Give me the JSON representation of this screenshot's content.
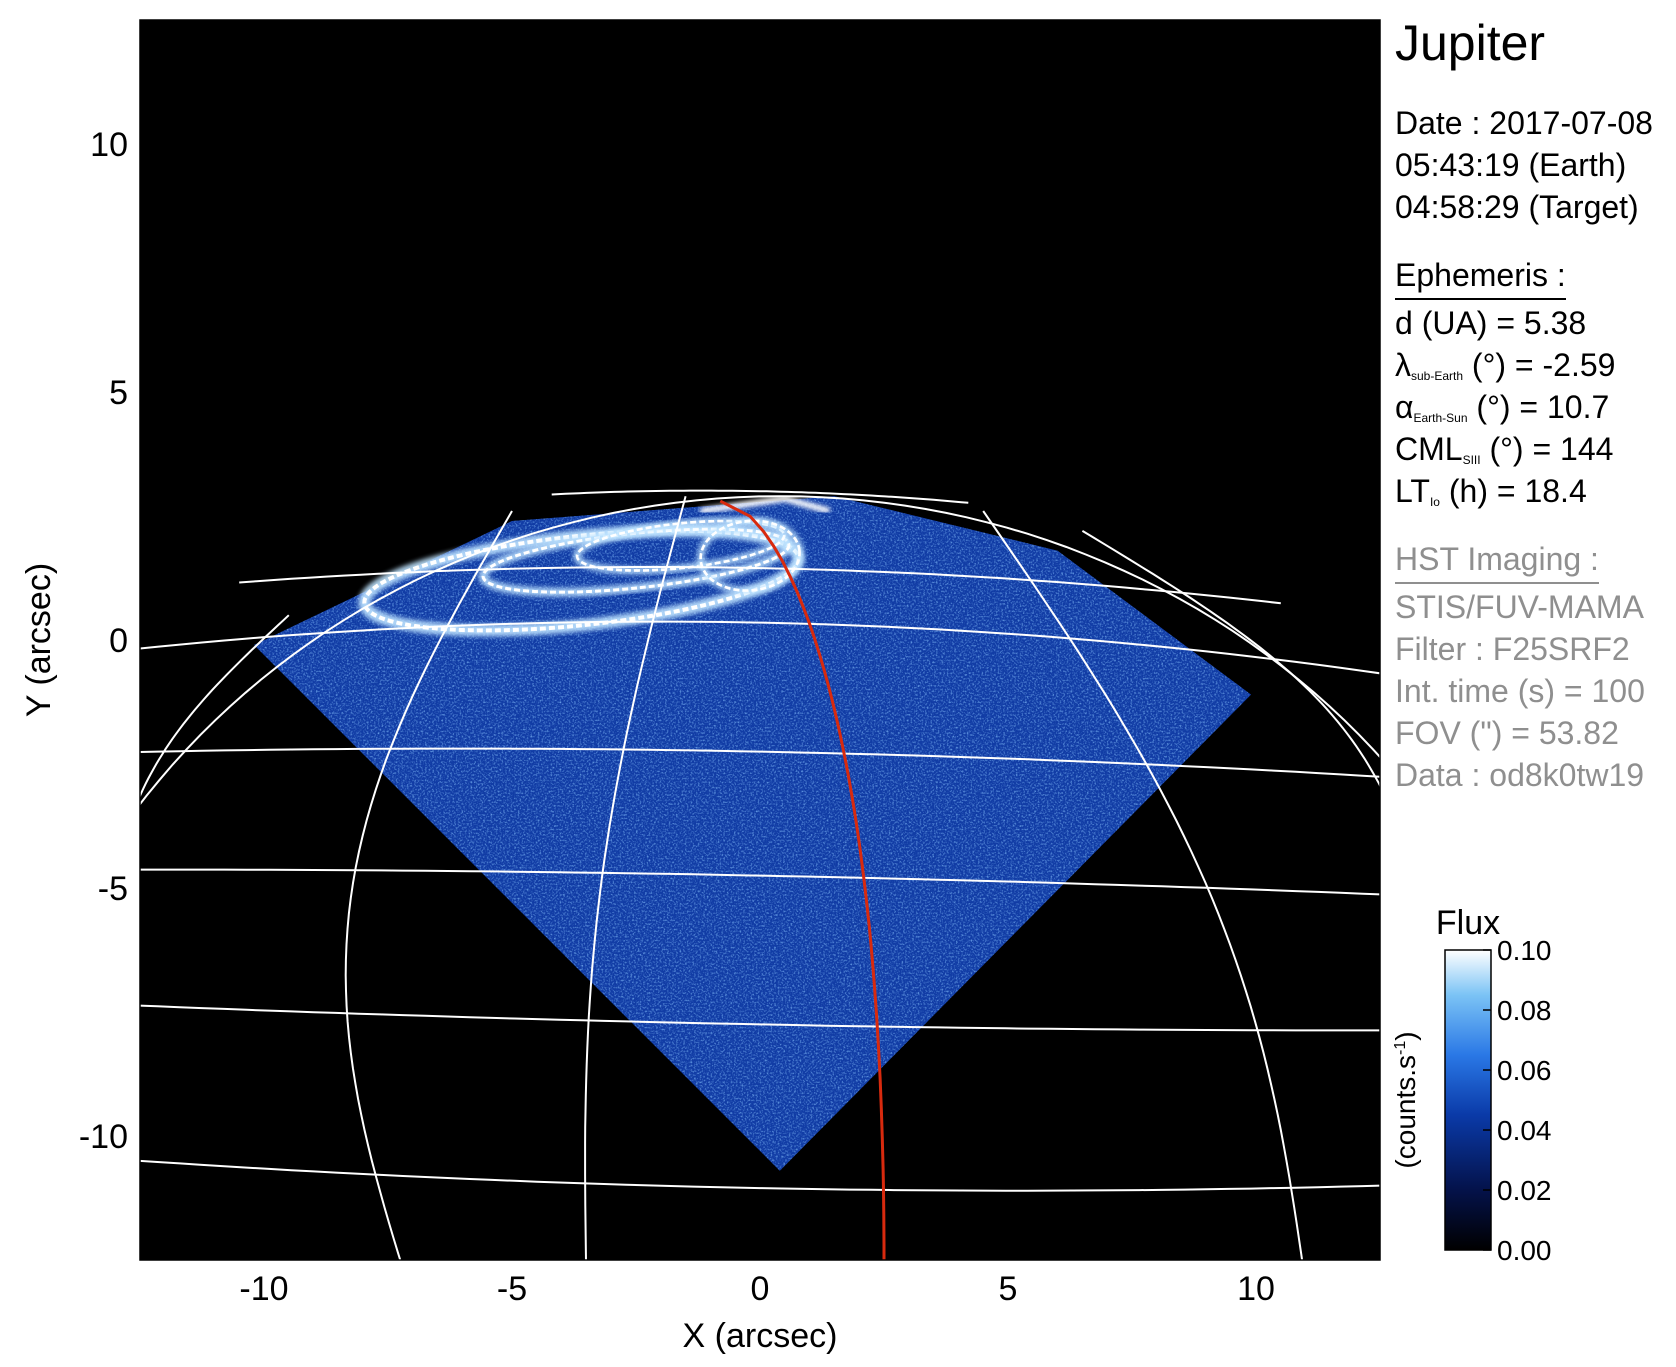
{
  "chart_data": {
    "type": "heatmap",
    "title": "Jupiter",
    "xlabel": "X (arcsec)",
    "ylabel": "Y (arcsec)",
    "xlim": [
      -12.5,
      12.5
    ],
    "ylim": [
      -12.5,
      12.5
    ],
    "xticks": [
      -10,
      -5,
      0,
      5,
      10
    ],
    "yticks": [
      10,
      5,
      0,
      -5,
      -10
    ],
    "grid": "latitude/longitude grid (white)",
    "annotations": [
      "red curve: Io footprint longitude"
    ],
    "colorbar": {
      "title": "Flux",
      "label": "(counts.s-1)",
      "ticks": [
        0.1,
        0.08,
        0.06,
        0.04,
        0.02,
        0.0
      ],
      "tick_labels": [
        "0.10",
        "0.08",
        "0.06",
        "0.04",
        "0.02",
        "0.00"
      ],
      "range": [
        0.0,
        0.1
      ]
    },
    "colors": {
      "background": "#000000",
      "grid": "#ffffff",
      "io_footprint": "#d82a0e",
      "colormap": [
        "#000000",
        "#04124a",
        "#0a3aa8",
        "#2a78e6",
        "#7bc3f5",
        "#ffffff"
      ]
    }
  },
  "info": {
    "target": "Jupiter",
    "date_line": "Date : 2017-07-08",
    "time_earth": "05:43:19 (Earth)",
    "time_target": "04:58:29 (Target)",
    "ephemeris_header": "Ephemeris :",
    "d_label": "d (UA)    = 5.38",
    "lambda_sym": "λ",
    "lambda_sub": "sub-Earth",
    "lambda_rest": " (°) = -2.59",
    "alpha_sym": "α",
    "alpha_sub": "Earth-Sun",
    "alpha_rest": " (°) = 10.7",
    "cml_sym": "CML",
    "cml_sub": "SIII",
    "cml_rest": " (°) = 144",
    "lt_sym": "LT",
    "lt_sub": "Io",
    "lt_rest": " (h) = 18.4",
    "hst_header": "HST Imaging :",
    "instrument": "STIS/FUV-MAMA",
    "filter": "Filter : F25SRF2",
    "int_time": "Int. time (s) = 100",
    "fov": "FOV (\") = 53.82",
    "data_id": "Data : od8k0tw19"
  }
}
